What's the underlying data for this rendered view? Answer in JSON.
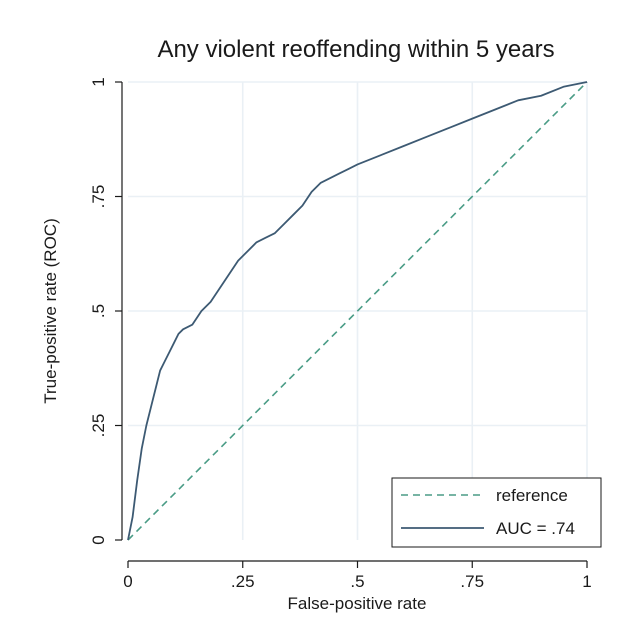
{
  "chart_data": {
    "type": "line",
    "title": "Any violent reoffending within 5 years",
    "xlabel": "False-positive rate",
    "ylabel": "True-positive rate (ROC)",
    "xlim": [
      0,
      1
    ],
    "ylim": [
      0,
      1
    ],
    "x_ticks": [
      0,
      0.25,
      0.5,
      0.75,
      1
    ],
    "x_tick_labels": [
      "0",
      ".25",
      ".5",
      ".75",
      "1"
    ],
    "y_ticks": [
      0,
      0.25,
      0.5,
      0.75,
      1
    ],
    "y_tick_labels": [
      "0",
      ".25",
      ".5",
      ".75",
      "1"
    ],
    "grid": true,
    "legend_position": "bottom-right",
    "colors": {
      "roc": "#3d5a73",
      "reference": "#4a9c86",
      "grid": "#eaf0f5"
    },
    "series": [
      {
        "name": "reference",
        "style": "dashed",
        "x": [
          0,
          1
        ],
        "y": [
          0,
          1
        ]
      },
      {
        "name": "AUC = .74",
        "style": "solid",
        "x": [
          0,
          0.01,
          0.02,
          0.03,
          0.04,
          0.05,
          0.06,
          0.07,
          0.08,
          0.09,
          0.1,
          0.11,
          0.12,
          0.14,
          0.16,
          0.18,
          0.2,
          0.22,
          0.24,
          0.26,
          0.28,
          0.3,
          0.32,
          0.34,
          0.36,
          0.38,
          0.4,
          0.42,
          0.44,
          0.46,
          0.48,
          0.5,
          0.55,
          0.6,
          0.65,
          0.7,
          0.75,
          0.8,
          0.85,
          0.9,
          0.95,
          1
        ],
        "y": [
          0,
          0.05,
          0.13,
          0.2,
          0.25,
          0.29,
          0.33,
          0.37,
          0.39,
          0.41,
          0.43,
          0.45,
          0.46,
          0.47,
          0.5,
          0.52,
          0.55,
          0.58,
          0.61,
          0.63,
          0.65,
          0.66,
          0.67,
          0.69,
          0.71,
          0.73,
          0.76,
          0.78,
          0.79,
          0.8,
          0.81,
          0.82,
          0.84,
          0.86,
          0.88,
          0.9,
          0.92,
          0.94,
          0.96,
          0.97,
          0.99,
          1
        ]
      }
    ],
    "auc": 0.74
  }
}
